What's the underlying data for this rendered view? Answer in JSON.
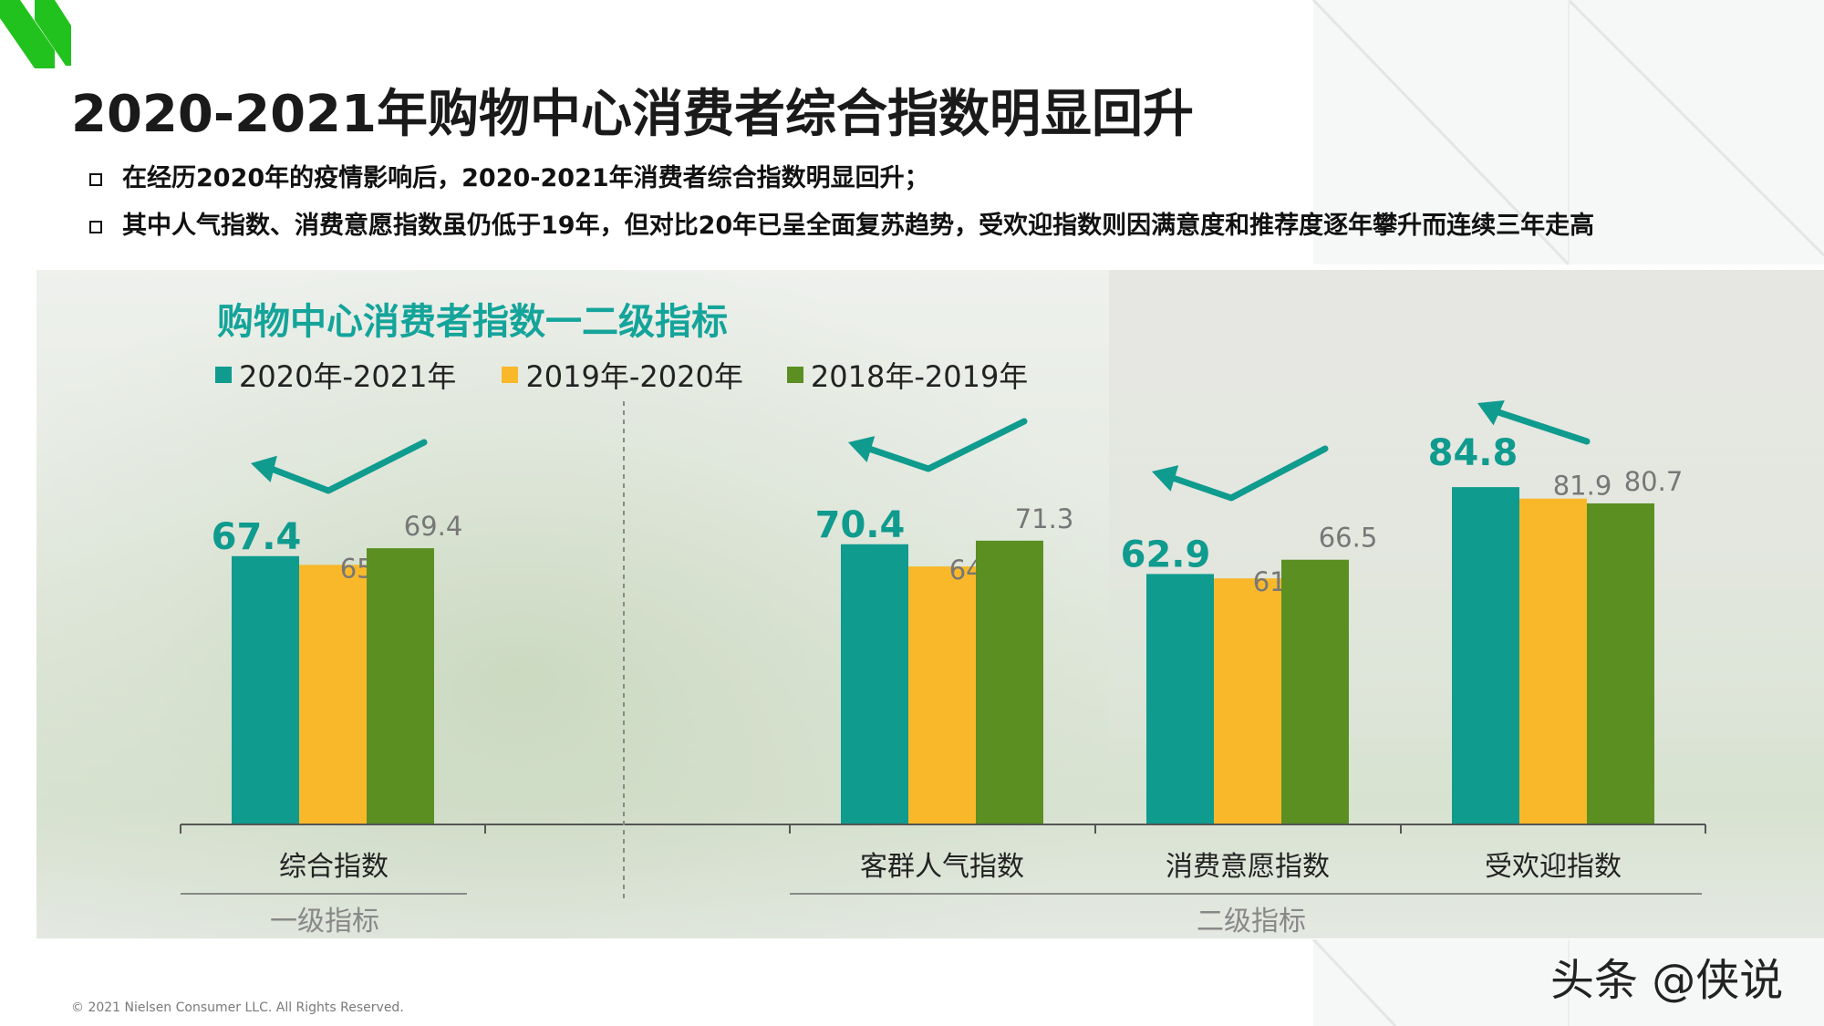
{
  "title": "2020-2021年购物中心消费者综合指数明显回升",
  "bullets": [
    "在经历2020年的疫情影响后，2020-2021年消费者综合指数明显回升；",
    "其中人气指数、消费意愿指数虽仍低于19年，但对比20年已呈全面复苏趋势，受欢迎指数则因满意度和推荐度逐年攀升而连续三年走高"
  ],
  "copyright": "© 2021 Nielsen Consumer LLC. All Rights Reserved.",
  "watermark": "头条 @侠说",
  "colors": {
    "accent": "#0f9b8e",
    "series1": "#0f9b8e",
    "series2": "#f8b82a",
    "series3": "#5b8f22",
    "brand": "#22c21e"
  },
  "chart_data": {
    "type": "bar",
    "title": "购物中心消费者指数一二级指标",
    "categories": [
      "综合指数",
      "客群人气指数",
      "消费意愿指数",
      "受欢迎指数"
    ],
    "groups": [
      {
        "label": "一级指标",
        "categories": [
          "综合指数"
        ]
      },
      {
        "label": "二级指标",
        "categories": [
          "客群人气指数",
          "消费意愿指数",
          "受欢迎指数"
        ]
      }
    ],
    "series": [
      {
        "name": "2020年-2021年",
        "values": [
          67.4,
          70.4,
          62.9,
          84.8
        ],
        "color": "#0f9b8e"
      },
      {
        "name": "2019年-2020年",
        "values": [
          65.2,
          64.8,
          61.8,
          81.9
        ],
        "color": "#f8b82a"
      },
      {
        "name": "2018年-2019年",
        "values": [
          69.4,
          71.3,
          66.5,
          80.7
        ],
        "color": "#5b8f22"
      }
    ],
    "ylim": [
      0,
      90
    ],
    "grid": false,
    "legend_position": "top-left"
  }
}
